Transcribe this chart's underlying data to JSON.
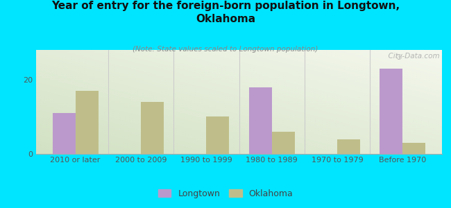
{
  "title": "Year of entry for the foreign-born population in Longtown,\nOklahoma",
  "subtitle": "(Note: State values scaled to Longtown population)",
  "categories": [
    "2010 or later",
    "2000 to 2009",
    "1990 to 1999",
    "1980 to 1989",
    "1970 to 1979",
    "Before 1970"
  ],
  "longtown_values": [
    11,
    0,
    0,
    18,
    0,
    23
  ],
  "oklahoma_values": [
    17,
    14,
    10,
    6,
    4,
    3
  ],
  "longtown_color": "#bb99cc",
  "oklahoma_color": "#bfbe8a",
  "bg_outer": "#00e5ff",
  "ylim": [
    0,
    28
  ],
  "yticks": [
    0,
    20
  ],
  "bar_width": 0.35,
  "watermark": "  City-Data.com",
  "legend_longtown": "Longtown",
  "legend_oklahoma": "Oklahoma",
  "title_fontsize": 11,
  "subtitle_fontsize": 7.5,
  "tick_fontsize": 8
}
